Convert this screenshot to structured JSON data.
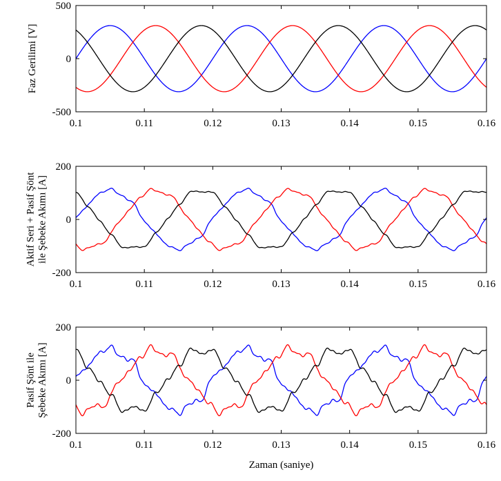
{
  "chart_data": [
    {
      "type": "line",
      "xlabel": "",
      "ylabel_lines": [
        "Faz Gerilimi [V]"
      ],
      "xlim": [
        0.1,
        0.16
      ],
      "ylim": [
        -500,
        500
      ],
      "xticks": [
        "0.1",
        "0.11",
        "0.12",
        "0.13",
        "0.14",
        "0.15",
        "0.16"
      ],
      "yticks": [
        "500",
        "0",
        "-500"
      ],
      "frequency_hz": 50,
      "series": [
        {
          "color": "#0000ff",
          "amplitude": 311,
          "phase_deg": 0,
          "ripple": 0
        },
        {
          "color": "#ff0000",
          "amplitude": 311,
          "phase_deg": -120,
          "ripple": 0
        },
        {
          "color": "#000000",
          "amplitude": 311,
          "phase_deg": 120,
          "ripple": 0
        }
      ]
    },
    {
      "type": "line",
      "xlabel": "",
      "ylabel_lines": [
        "Aktif Seri + Pasif Şönt",
        "ile Şebeke Akımı [A]"
      ],
      "xlim": [
        0.1,
        0.16
      ],
      "ylim": [
        -200,
        200
      ],
      "xticks": [
        "0.1",
        "0.11",
        "0.12",
        "0.13",
        "0.14",
        "0.15",
        "0.16"
      ],
      "yticks": [
        "200",
        "0",
        "-200"
      ],
      "frequency_hz": 50,
      "series": [
        {
          "color": "#0000ff",
          "amplitude": 110,
          "phase_deg": 0,
          "ripple": 8
        },
        {
          "color": "#ff0000",
          "amplitude": 110,
          "phase_deg": -120,
          "ripple": 8
        },
        {
          "color": "#000000",
          "amplitude": 110,
          "phase_deg": 120,
          "ripple": 8
        }
      ]
    },
    {
      "type": "line",
      "xlabel": "Zaman (saniye)",
      "ylabel_lines": [
        "Pasif Şönt ile",
        "Şebeke Akımı [A]"
      ],
      "xlim": [
        0.1,
        0.16
      ],
      "ylim": [
        -200,
        200
      ],
      "xticks": [
        "0.1",
        "0.11",
        "0.12",
        "0.13",
        "0.14",
        "0.15",
        "0.16"
      ],
      "yticks": [
        "200",
        "0",
        "-200"
      ],
      "frequency_hz": 50,
      "series": [
        {
          "color": "#0000ff",
          "amplitude": 115,
          "phase_deg": 0,
          "ripple": 18
        },
        {
          "color": "#ff0000",
          "amplitude": 115,
          "phase_deg": -120,
          "ripple": 18
        },
        {
          "color": "#000000",
          "amplitude": 115,
          "phase_deg": 120,
          "ripple": 18
        }
      ]
    }
  ]
}
